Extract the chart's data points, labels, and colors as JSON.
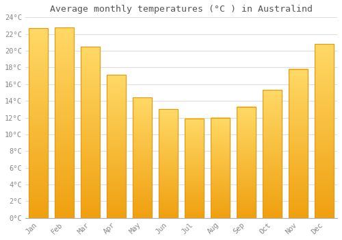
{
  "title": "Average monthly temperatures (°C ) in Australind",
  "months": [
    "Jan",
    "Feb",
    "Mar",
    "Apr",
    "May",
    "Jun",
    "Jul",
    "Aug",
    "Sep",
    "Oct",
    "Nov",
    "Dec"
  ],
  "temperatures": [
    22.7,
    22.8,
    20.5,
    17.1,
    14.4,
    13.0,
    11.9,
    12.0,
    13.3,
    15.3,
    17.8,
    20.8
  ],
  "bar_color_top": "#FFD966",
  "bar_color_bottom": "#F0A010",
  "bar_color_edge": "#E8960A",
  "ylim": [
    0,
    24
  ],
  "yticks": [
    0,
    2,
    4,
    6,
    8,
    10,
    12,
    14,
    16,
    18,
    20,
    22,
    24
  ],
  "ytick_labels": [
    "0°C",
    "2°C",
    "4°C",
    "6°C",
    "8°C",
    "10°C",
    "12°C",
    "14°C",
    "16°C",
    "18°C",
    "20°C",
    "22°C",
    "24°C"
  ],
  "background_color": "#FFFFFF",
  "grid_color": "#DDDDDD",
  "title_fontsize": 9.5,
  "tick_fontsize": 7.5,
  "font_family": "monospace",
  "tick_color": "#888888",
  "title_color": "#555555"
}
